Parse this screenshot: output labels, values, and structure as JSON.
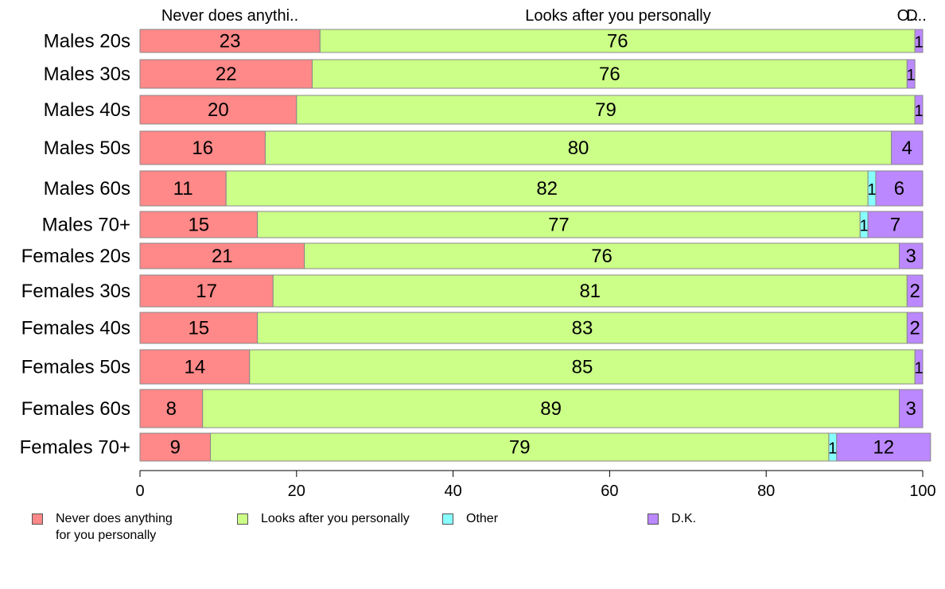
{
  "chart_data": {
    "type": "bar",
    "orientation": "horizontal",
    "stacked": true,
    "categories": [
      "Males 20s",
      "Males 30s",
      "Males 40s",
      "Males 50s",
      "Males 60s",
      "Males 70+",
      "Females 20s",
      "Females 30s",
      "Females 40s",
      "Females 50s",
      "Females 60s",
      "Females 70+"
    ],
    "series": [
      {
        "name": "Never does anything\nfor you personally",
        "color": "#ff8888",
        "values": [
          23,
          22,
          20,
          16,
          11,
          15,
          21,
          17,
          15,
          14,
          8,
          9
        ]
      },
      {
        "name": "Looks after you personally",
        "color": "#ccff88",
        "values": [
          76,
          76,
          79,
          80,
          82,
          77,
          76,
          81,
          83,
          85,
          89,
          79
        ]
      },
      {
        "name": "Other",
        "color": "#88ffff",
        "values": [
          0,
          0,
          0,
          0,
          1,
          1,
          0,
          0,
          0,
          0,
          0,
          1
        ]
      },
      {
        "name": "D.K.",
        "color": "#bb88ff",
        "values": [
          1,
          1,
          1,
          4,
          6,
          7,
          3,
          2,
          2,
          1,
          3,
          12
        ]
      }
    ],
    "top_labels": [
      "Never does anythi..",
      "Looks after you personally",
      "O..",
      "D.."
    ],
    "xlim": [
      0,
      100
    ],
    "xticks": [
      0,
      20,
      40,
      60,
      80,
      100
    ],
    "legend_position": "bottom"
  }
}
